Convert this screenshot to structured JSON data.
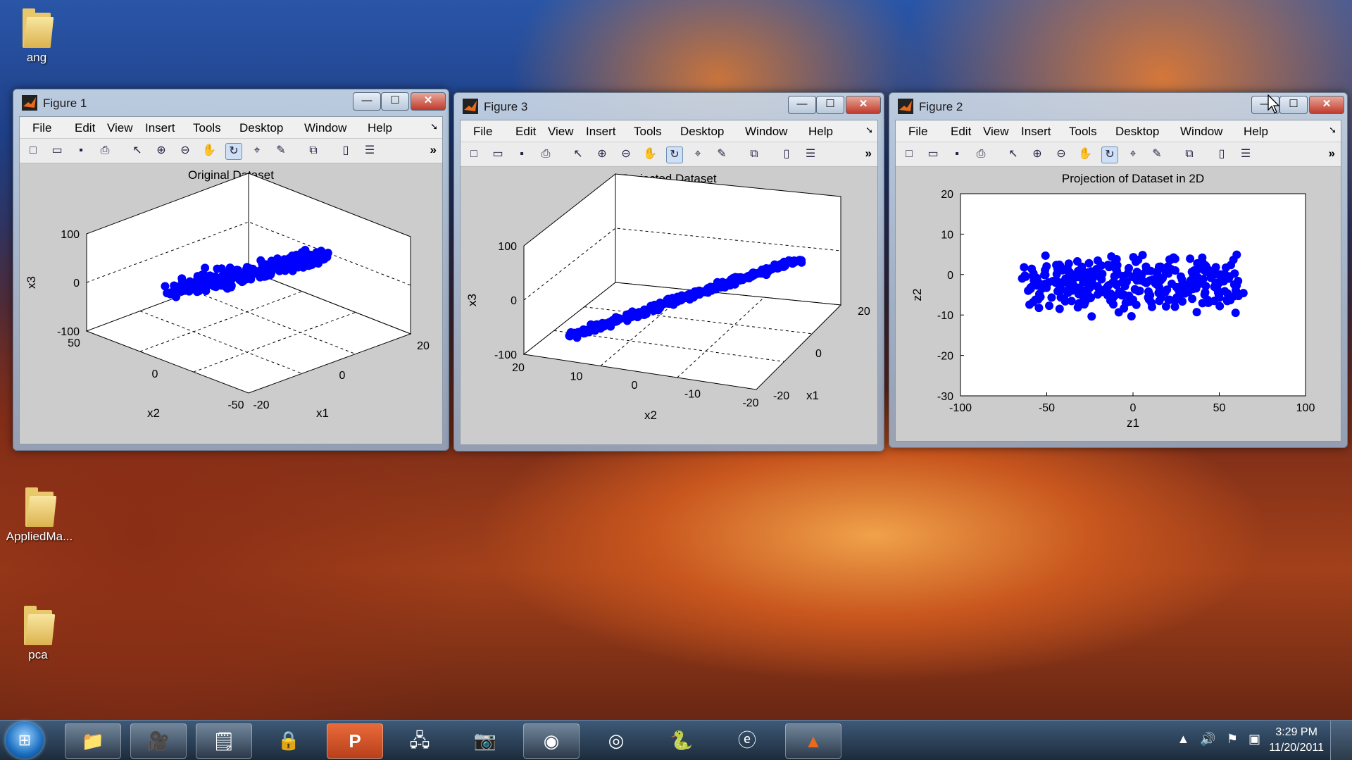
{
  "desktop": {
    "icons": [
      {
        "label": "ang",
        "kind": "user-folder"
      },
      {
        "label": "AppliedMa...",
        "kind": "folder"
      },
      {
        "label": "pca",
        "kind": "folder"
      }
    ]
  },
  "menu_labels": [
    "File",
    "Edit",
    "View",
    "Insert",
    "Tools",
    "Desktop",
    "Window",
    "Help"
  ],
  "windows": [
    {
      "title": "Figure 1",
      "plot": {
        "title": "Original Dataset",
        "xlabel": "x1",
        "ylabel": "x2",
        "zlabel": "x3",
        "z_ticks": [
          "100",
          "0",
          "-100"
        ],
        "x1_ticks": [
          "-20",
          "0",
          "20"
        ],
        "x2_ticks": [
          "50",
          "0",
          "-50"
        ]
      }
    },
    {
      "title": "Figure 3",
      "plot": {
        "title": "Projected Dataset",
        "xlabel": "x2",
        "ylabel": "x1",
        "zlabel": "x3",
        "z_ticks": [
          "100",
          "0",
          "-100"
        ],
        "x2_ticks": [
          "20",
          "10",
          "0",
          "-10",
          "-20"
        ],
        "x1_ticks": [
          "20",
          "0",
          "-20"
        ]
      }
    },
    {
      "title": "Figure 2",
      "plot": {
        "title": "Projection of Dataset in 2D",
        "xlabel": "z1",
        "ylabel": "z2",
        "x_ticks": [
          "-100",
          "-50",
          "0",
          "50",
          "100"
        ],
        "y_ticks": [
          "20",
          "10",
          "0",
          "-10",
          "-20",
          "-30"
        ]
      }
    }
  ],
  "chart_data": [
    {
      "type": "scatter",
      "title": "Original Dataset",
      "xlabel": "x1",
      "ylabel": "x2",
      "zlabel": "x3",
      "xlim": [
        -20,
        20
      ],
      "ylim": [
        -50,
        50
      ],
      "zlim": [
        -100,
        100
      ],
      "color": "#0000ff",
      "note_points": "dense elongated 3D cloud oriented along a diagonal, approx 300 points"
    },
    {
      "type": "scatter",
      "title": "Projected Dataset",
      "xlabel": "x2",
      "ylabel": "x1",
      "zlabel": "x3",
      "xlim": [
        -20,
        20
      ],
      "ylim": [
        -20,
        20
      ],
      "zlim": [
        -100,
        100
      ],
      "color": "#0000ff",
      "note_points": "points lie on a thin plane forming an elongated diagonal band"
    },
    {
      "type": "scatter",
      "title": "Projection of Dataset in 2D",
      "xlabel": "z1",
      "ylabel": "z2",
      "xlim": [
        -100,
        100
      ],
      "ylim": [
        -30,
        20
      ],
      "color": "#0000ff"
    }
  ],
  "taskbar": {
    "time": "3:29 PM",
    "date": "11/20/2011",
    "apps": [
      "explorer",
      "camera-tool",
      "sticky-notes",
      "network-security",
      "powerpoint",
      "network-connect",
      "camera",
      "chrome",
      "webcam",
      "python",
      "ie-blue",
      "matlab"
    ]
  }
}
